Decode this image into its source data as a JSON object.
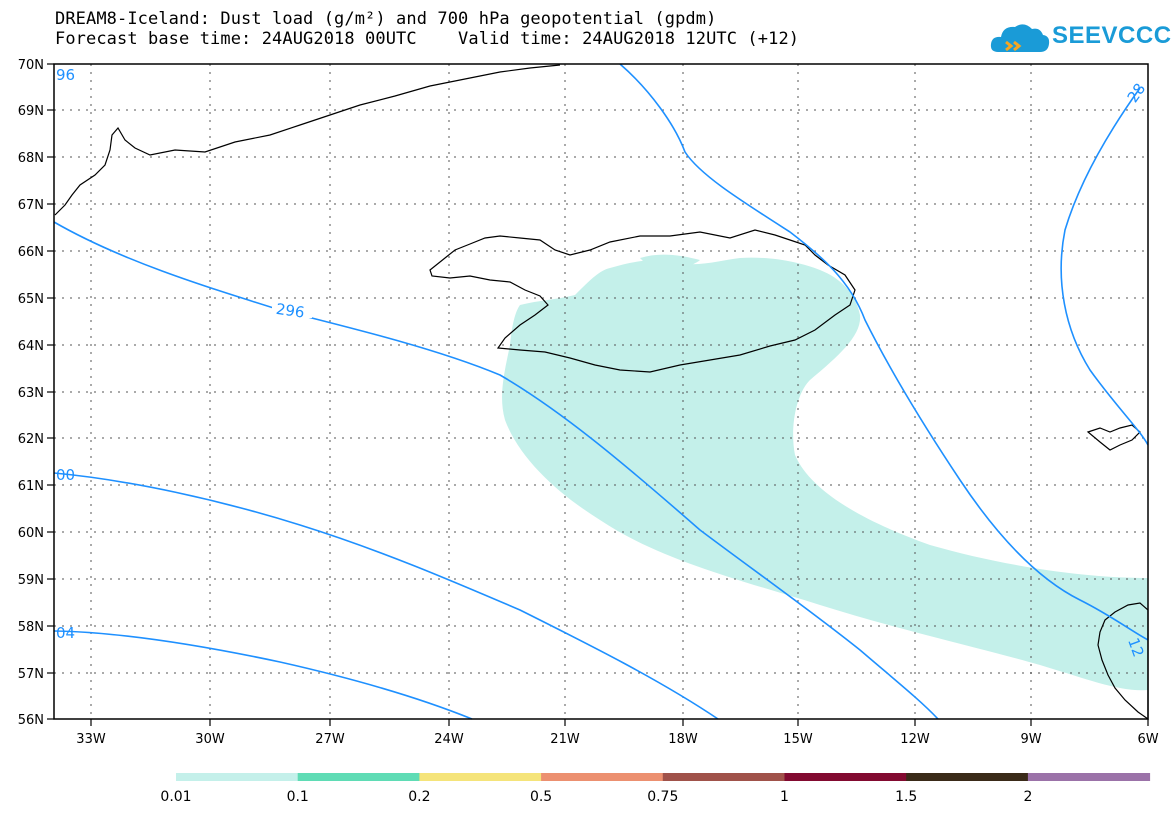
{
  "header": {
    "title_line1": "DREAM8-Iceland: Dust load (g/m²) and 700 hPa geopotential (gpdm)",
    "title_line2": "Forecast base time: 24AUG2018 00UTC    Valid time: 24AUG2018 12UTC (+12)"
  },
  "logo": {
    "text": "SEEVCCC",
    "icon": "cloud-logo-icon",
    "color": "#1a9bd7"
  },
  "map": {
    "lat_labels": [
      "70N",
      "69N",
      "68N",
      "67N",
      "66N",
      "65N",
      "64N",
      "63N",
      "62N",
      "61N",
      "60N",
      "59N",
      "58N",
      "57N",
      "56N"
    ],
    "lon_labels": [
      "33W",
      "30W",
      "27W",
      "24W",
      "21W",
      "18W",
      "15W",
      "12W",
      "9W",
      "6W"
    ],
    "contour_color": "#1e90ff",
    "dust_color": "#c4f0ea",
    "contour_labels": [
      "296",
      "96",
      "28",
      "00",
      "04",
      "12"
    ]
  },
  "colorbar": {
    "colors": [
      "#c4f0ea",
      "#5fdcb5",
      "#f5e47a",
      "#ec9070",
      "#a0524a",
      "#820a30",
      "#3a2a18",
      "#9b72a8"
    ],
    "labels": [
      "0.01",
      "0.1",
      "0.2",
      "0.5",
      "0.75",
      "1",
      "1.5",
      "2"
    ]
  }
}
